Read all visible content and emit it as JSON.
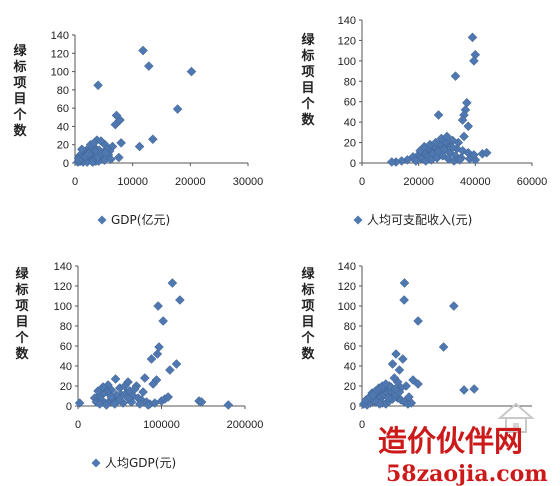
{
  "watermark": {
    "main": "造价伙伴网",
    "sub": "58zaojia.com",
    "color": "#cc1a1a"
  },
  "marker_color": "#4f78b0",
  "chart_data": [
    {
      "type": "scatter",
      "ylabel": "绿标项目个数",
      "legend": "GDP(亿元)",
      "legend_position": "bottom-left",
      "grid": false,
      "xlim": [
        0,
        30000
      ],
      "ylim": [
        0,
        140
      ],
      "xticks": [
        0,
        10000,
        20000,
        30000
      ],
      "yticks": [
        0,
        20,
        40,
        60,
        80,
        100,
        120,
        140
      ],
      "points": [
        [
          11800,
          123
        ],
        [
          12800,
          106
        ],
        [
          20200,
          100
        ],
        [
          4000,
          85
        ],
        [
          17800,
          59
        ],
        [
          7200,
          52
        ],
        [
          7800,
          47
        ],
        [
          7000,
          42
        ],
        [
          13500,
          26
        ],
        [
          11200,
          18
        ],
        [
          8000,
          22
        ],
        [
          6500,
          18
        ],
        [
          5200,
          20
        ],
        [
          3800,
          25
        ],
        [
          4500,
          24
        ],
        [
          3200,
          18
        ],
        [
          2800,
          16
        ],
        [
          4200,
          14
        ],
        [
          6000,
          13
        ],
        [
          5500,
          15
        ],
        [
          3500,
          12
        ],
        [
          2000,
          14
        ],
        [
          2500,
          12
        ],
        [
          1600,
          11
        ],
        [
          1300,
          10
        ],
        [
          1000,
          9
        ],
        [
          800,
          8
        ],
        [
          2200,
          8
        ],
        [
          3000,
          7
        ],
        [
          4800,
          8
        ],
        [
          5800,
          9
        ],
        [
          1500,
          6
        ],
        [
          1900,
          5
        ],
        [
          2600,
          5
        ],
        [
          3400,
          4
        ],
        [
          4400,
          5
        ],
        [
          600,
          5
        ],
        [
          1100,
          4
        ],
        [
          1700,
          3
        ],
        [
          2300,
          3
        ],
        [
          2900,
          2
        ],
        [
          3600,
          2
        ],
        [
          900,
          2
        ],
        [
          1400,
          1
        ],
        [
          500,
          1
        ],
        [
          2100,
          1
        ],
        [
          3100,
          1
        ],
        [
          4100,
          2
        ],
        [
          5100,
          3
        ],
        [
          6200,
          4
        ],
        [
          7600,
          6
        ],
        [
          1200,
          15
        ],
        [
          2700,
          20
        ],
        [
          3300,
          22
        ],
        [
          4600,
          10
        ],
        [
          5300,
          11
        ],
        [
          700,
          3
        ],
        [
          1800,
          7
        ],
        [
          2400,
          10
        ],
        [
          3900,
          6
        ]
      ]
    },
    {
      "type": "scatter",
      "ylabel": "绿标项目个数",
      "legend": "人均可支配收入(元)",
      "legend_position": "bottom-left",
      "grid": false,
      "xlim": [
        0,
        60000
      ],
      "ylim": [
        0,
        140
      ],
      "xticks": [
        0,
        20000,
        40000,
        60000
      ],
      "yticks": [
        0,
        20,
        40,
        60,
        80,
        100,
        120,
        140
      ],
      "points": [
        [
          39000,
          123
        ],
        [
          40000,
          106
        ],
        [
          39500,
          100
        ],
        [
          33000,
          85
        ],
        [
          37000,
          59
        ],
        [
          36500,
          52
        ],
        [
          36000,
          47
        ],
        [
          27000,
          47
        ],
        [
          35500,
          42
        ],
        [
          37500,
          36
        ],
        [
          36000,
          26
        ],
        [
          34000,
          20
        ],
        [
          32000,
          22
        ],
        [
          30000,
          18
        ],
        [
          28000,
          16
        ],
        [
          26000,
          14
        ],
        [
          24000,
          12
        ],
        [
          22000,
          10
        ],
        [
          20000,
          8
        ],
        [
          18000,
          6
        ],
        [
          16000,
          3
        ],
        [
          14000,
          2
        ],
        [
          12000,
          1
        ],
        [
          10500,
          1
        ],
        [
          23000,
          6
        ],
        [
          25000,
          9
        ],
        [
          27000,
          11
        ],
        [
          29000,
          13
        ],
        [
          31000,
          10
        ],
        [
          33000,
          7
        ],
        [
          35000,
          5
        ],
        [
          38000,
          4
        ],
        [
          40000,
          3
        ],
        [
          42500,
          9
        ],
        [
          44000,
          10
        ],
        [
          21000,
          4
        ],
        [
          22500,
          2
        ],
        [
          24500,
          3
        ],
        [
          26500,
          5
        ],
        [
          28500,
          7
        ],
        [
          30500,
          4
        ],
        [
          32500,
          2
        ],
        [
          34500,
          3
        ],
        [
          19000,
          2
        ],
        [
          23500,
          15
        ],
        [
          25500,
          17
        ],
        [
          27500,
          19
        ],
        [
          29500,
          21
        ],
        [
          31500,
          16
        ],
        [
          33500,
          14
        ],
        [
          35500,
          12
        ],
        [
          37500,
          10
        ],
        [
          39500,
          8
        ],
        [
          20500,
          12
        ],
        [
          22000,
          16
        ],
        [
          24000,
          18
        ],
        [
          26000,
          20
        ],
        [
          28000,
          24
        ],
        [
          30000,
          26
        ],
        [
          32000,
          15
        ]
      ]
    },
    {
      "type": "scatter",
      "ylabel": "绿标项目个数",
      "legend": "人均GDP(元)",
      "legend_position": "bottom-left",
      "grid": false,
      "xlim": [
        0,
        200000
      ],
      "ylim": [
        0,
        140
      ],
      "xticks": [
        0,
        100000,
        200000
      ],
      "yticks": [
        0,
        20,
        40,
        60,
        80,
        100,
        120,
        140
      ],
      "points": [
        [
          113000,
          123
        ],
        [
          122000,
          106
        ],
        [
          96000,
          100
        ],
        [
          102000,
          85
        ],
        [
          97000,
          59
        ],
        [
          95000,
          52
        ],
        [
          88000,
          47
        ],
        [
          118000,
          42
        ],
        [
          110000,
          36
        ],
        [
          94000,
          26
        ],
        [
          90000,
          22
        ],
        [
          80000,
          28
        ],
        [
          70000,
          20
        ],
        [
          60000,
          24
        ],
        [
          50000,
          18
        ],
        [
          45000,
          27
        ],
        [
          40000,
          16
        ],
        [
          35000,
          14
        ],
        [
          30000,
          12
        ],
        [
          25000,
          10
        ],
        [
          20000,
          8
        ],
        [
          22000,
          4
        ],
        [
          28000,
          6
        ],
        [
          32000,
          3
        ],
        [
          38000,
          5
        ],
        [
          42000,
          7
        ],
        [
          48000,
          9
        ],
        [
          52000,
          11
        ],
        [
          58000,
          13
        ],
        [
          62000,
          15
        ],
        [
          66000,
          10
        ],
        [
          72000,
          8
        ],
        [
          76000,
          6
        ],
        [
          82000,
          4
        ],
        [
          86000,
          2
        ],
        [
          92000,
          3
        ],
        [
          100000,
          5
        ],
        [
          104000,
          7
        ],
        [
          108000,
          9
        ],
        [
          145000,
          5
        ],
        [
          148000,
          4
        ],
        [
          180000,
          1
        ],
        [
          2000,
          3
        ],
        [
          26000,
          2
        ],
        [
          34000,
          1
        ],
        [
          44000,
          2
        ],
        [
          54000,
          3
        ],
        [
          64000,
          4
        ],
        [
          74000,
          2
        ],
        [
          84000,
          1
        ],
        [
          56000,
          20
        ],
        [
          68000,
          17
        ],
        [
          78000,
          14
        ],
        [
          36000,
          21
        ],
        [
          46000,
          11
        ],
        [
          24000,
          15
        ],
        [
          30000,
          19
        ],
        [
          40000,
          9
        ],
        [
          50000,
          6
        ],
        [
          60000,
          8
        ]
      ]
    },
    {
      "type": "scatter",
      "ylabel": "绿标项目个数",
      "legend": "",
      "grid": false,
      "xlim": [
        0,
        50000
      ],
      "ylim": [
        0,
        140
      ],
      "xticks": [
        0
      ],
      "yticks": [
        0,
        20,
        40,
        60,
        80,
        100,
        120,
        140
      ],
      "points": [
        [
          12500,
          123
        ],
        [
          12400,
          106
        ],
        [
          27000,
          100
        ],
        [
          16500,
          85
        ],
        [
          24000,
          59
        ],
        [
          10000,
          52
        ],
        [
          12000,
          47
        ],
        [
          9000,
          42
        ],
        [
          11000,
          36
        ],
        [
          30000,
          16
        ],
        [
          33000,
          17
        ],
        [
          15000,
          26
        ],
        [
          16500,
          22
        ],
        [
          13000,
          20
        ],
        [
          11500,
          18
        ],
        [
          10500,
          24
        ],
        [
          9500,
          28
        ],
        [
          8000,
          20
        ],
        [
          7000,
          16
        ],
        [
          6000,
          14
        ],
        [
          5000,
          12
        ],
        [
          4000,
          10
        ],
        [
          3000,
          8
        ],
        [
          2000,
          6
        ],
        [
          1000,
          4
        ],
        [
          500,
          2
        ],
        [
          1500,
          1
        ],
        [
          2500,
          3
        ],
        [
          3500,
          5
        ],
        [
          4500,
          7
        ],
        [
          5500,
          9
        ],
        [
          6500,
          11
        ],
        [
          7500,
          13
        ],
        [
          8500,
          15
        ],
        [
          9500,
          10
        ],
        [
          10500,
          8
        ],
        [
          11500,
          6
        ],
        [
          12500,
          4
        ],
        [
          13500,
          2
        ],
        [
          14500,
          3
        ],
        [
          6000,
          3
        ],
        [
          7000,
          2
        ],
        [
          8000,
          5
        ],
        [
          9000,
          7
        ],
        [
          10000,
          12
        ],
        [
          11000,
          14
        ],
        [
          3000,
          13
        ],
        [
          4000,
          15
        ],
        [
          5000,
          18
        ],
        [
          6000,
          20
        ],
        [
          7000,
          22
        ],
        [
          1200,
          6
        ],
        [
          2200,
          9
        ],
        [
          3200,
          11
        ],
        [
          4200,
          4
        ],
        [
          5200,
          2
        ],
        [
          8500,
          19
        ],
        [
          9800,
          17
        ],
        [
          13800,
          9
        ],
        [
          7800,
          8
        ]
      ]
    }
  ]
}
